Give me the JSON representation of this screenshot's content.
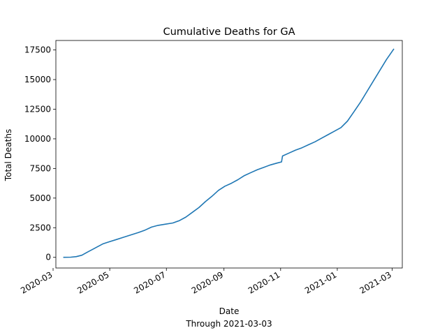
{
  "chart_data": {
    "type": "line",
    "title": "Cumulative Deaths for GA",
    "xlabel": "Date",
    "xlabel_note": "Through 2021-03-03",
    "ylabel": "Total Deaths",
    "xlim": [
      "2020-03-04",
      "2021-03-12"
    ],
    "ylim": [
      -900,
      18300
    ],
    "xticks": [
      "2020-03",
      "2020-05",
      "2020-07",
      "2020-09",
      "2020-11",
      "2021-01",
      "2021-03"
    ],
    "xtick_dates": [
      "2020-03-01",
      "2020-05-01",
      "2020-07-01",
      "2020-09-01",
      "2020-11-01",
      "2021-01-01",
      "2021-03-01"
    ],
    "yticks": [
      "0",
      "2500",
      "5000",
      "7500",
      "10000",
      "12500",
      "15000",
      "17500"
    ],
    "ytick_values": [
      0,
      2500,
      5000,
      7500,
      10000,
      12500,
      15000,
      17500
    ],
    "grid": false,
    "line_color": "#1f77b4",
    "series": [
      {
        "x": [
          "2020-03-12",
          "2020-03-20",
          "2020-03-26",
          "2020-04-01",
          "2020-04-06",
          "2020-04-12",
          "2020-04-18",
          "2020-04-24",
          "2020-04-30",
          "2020-05-08",
          "2020-05-16",
          "2020-05-24",
          "2020-06-01",
          "2020-06-08",
          "2020-06-15",
          "2020-06-22",
          "2020-06-30",
          "2020-07-08",
          "2020-07-15",
          "2020-07-22",
          "2020-07-29",
          "2020-08-05",
          "2020-08-12",
          "2020-08-19",
          "2020-08-26",
          "2020-09-02",
          "2020-09-09",
          "2020-09-16",
          "2020-09-23",
          "2020-09-30",
          "2020-10-07",
          "2020-10-14",
          "2020-10-21",
          "2020-10-28",
          "2020-11-02",
          "2020-11-03",
          "2020-11-10",
          "2020-11-17",
          "2020-11-24",
          "2020-12-01",
          "2020-12-08",
          "2020-12-15",
          "2020-12-22",
          "2020-12-29",
          "2021-01-05",
          "2021-01-12",
          "2021-01-19",
          "2021-01-26",
          "2021-02-02",
          "2021-02-09",
          "2021-02-16",
          "2021-02-23",
          "2021-03-03"
        ],
        "y": [
          0,
          10,
          60,
          180,
          400,
          650,
          900,
          1150,
          1300,
          1500,
          1700,
          1900,
          2100,
          2300,
          2550,
          2700,
          2800,
          2900,
          3100,
          3400,
          3800,
          4200,
          4700,
          5150,
          5650,
          6000,
          6250,
          6550,
          6900,
          7150,
          7400,
          7600,
          7800,
          7950,
          8050,
          8550,
          8800,
          9050,
          9250,
          9500,
          9750,
          10050,
          10350,
          10650,
          10950,
          11500,
          12300,
          13100,
          14000,
          14900,
          15800,
          16700,
          17600
        ]
      }
    ]
  }
}
